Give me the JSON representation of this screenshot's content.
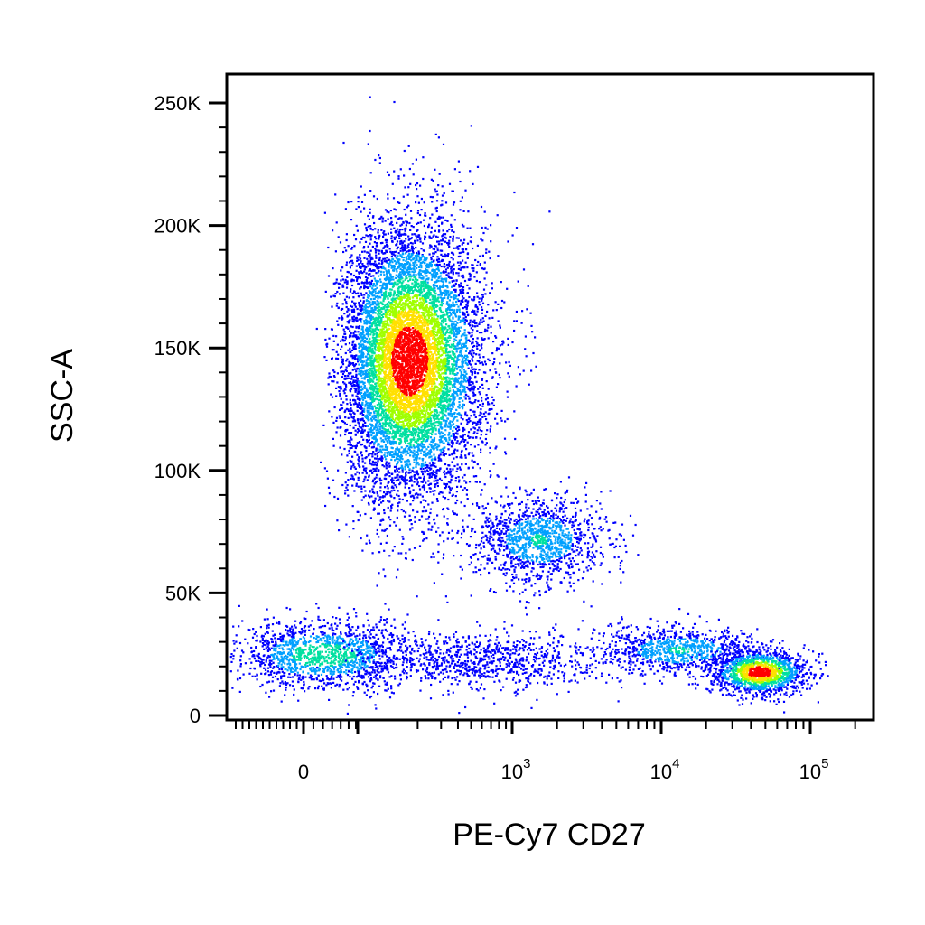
{
  "chart_data": {
    "type": "scatter",
    "title": "",
    "xlabel": "PE-Cy7 CD27",
    "ylabel": "SSC-A",
    "x_scale": "biexponential",
    "xlim": [
      -100,
      200000
    ],
    "ylim": [
      0,
      262144
    ],
    "x_ticks": [
      {
        "value": 0,
        "base": "0",
        "exp": ""
      },
      {
        "value": 1000,
        "base": "10",
        "exp": "3"
      },
      {
        "value": 10000,
        "base": "10",
        "exp": "4"
      },
      {
        "value": 100000,
        "base": "10",
        "exp": "5"
      }
    ],
    "y_ticks": [
      {
        "value": 0,
        "label": "0"
      },
      {
        "value": 50000,
        "label": "50K"
      },
      {
        "value": 100000,
        "label": "100K"
      },
      {
        "value": 150000,
        "label": "150K"
      },
      {
        "value": 200000,
        "label": "200K"
      },
      {
        "value": 250000,
        "label": "250K"
      }
    ],
    "color_scale": [
      "#0000ff",
      "#00a0ff",
      "#00e0a0",
      "#a0ff00",
      "#ffe000",
      "#ff0000"
    ],
    "populations": [
      {
        "name": "",
        "x_center": 170,
        "y_center": 145000,
        "x_spread_decades": 0.28,
        "y_spread": 28000,
        "events": 9000,
        "peak_density": 1.0
      },
      {
        "name": "",
        "x_center": 1500,
        "y_center": 72000,
        "x_spread_decades": 0.22,
        "y_spread": 9000,
        "events": 1300,
        "peak_density": 0.35
      },
      {
        "name": "",
        "x_center": 20,
        "y_center": 25000,
        "x_spread_decades": 0.35,
        "y_spread": 7000,
        "events": 1500,
        "peak_density": 0.45
      },
      {
        "name": "",
        "x_center": 600,
        "y_center": 22000,
        "x_spread_decades": 0.45,
        "y_spread": 6000,
        "events": 900,
        "peak_density": 0.15
      },
      {
        "name": "",
        "x_center": 13000,
        "y_center": 27000,
        "x_spread_decades": 0.28,
        "y_spread": 5000,
        "events": 900,
        "peak_density": 0.35
      },
      {
        "name": "",
        "x_center": 45000,
        "y_center": 18000,
        "x_spread_decades": 0.16,
        "y_spread": 4500,
        "events": 1500,
        "peak_density": 1.0
      }
    ]
  }
}
